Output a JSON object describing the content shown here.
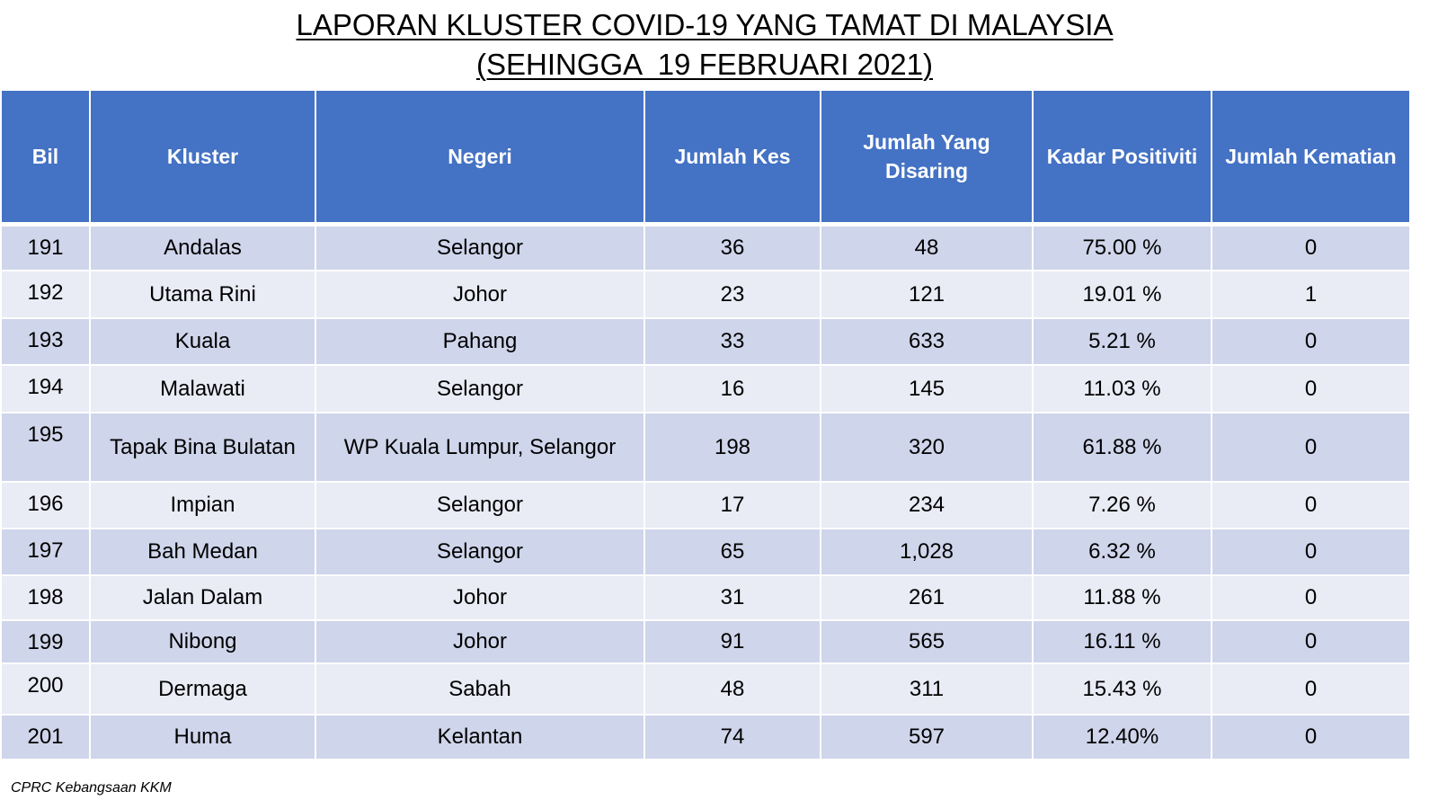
{
  "title": {
    "line1": "LAPORAN KLUSTER COVID-19 YANG TAMAT DI MALAYSIA",
    "line2": "(SEHINGGA  19 FEBRUARI 2021)"
  },
  "table": {
    "headers": {
      "bil": "Bil",
      "kluster": "Kluster",
      "negeri": "Negeri",
      "jumlah_kes": "Jumlah Kes",
      "jumlah_disaring": "Jumlah Yang Disaring",
      "kadar_positiviti": "Kadar Positiviti",
      "jumlah_kematian": "Jumlah Kematian"
    },
    "rows": [
      {
        "bil": "191",
        "kluster": "Andalas",
        "negeri": "Selangor",
        "kes": "36",
        "disaring": "48",
        "positiviti": "75.00 %",
        "kematian": "0"
      },
      {
        "bil": "192",
        "kluster": "Utama Rini",
        "negeri": "Johor",
        "kes": "23",
        "disaring": "121",
        "positiviti": "19.01 %",
        "kematian": "1"
      },
      {
        "bil": "193",
        "kluster": "Kuala",
        "negeri": "Pahang",
        "kes": "33",
        "disaring": "633",
        "positiviti": "5.21 %",
        "kematian": "0"
      },
      {
        "bil": "194",
        "kluster": "Malawati",
        "negeri": "Selangor",
        "kes": "16",
        "disaring": "145",
        "positiviti": "11.03 %",
        "kematian": "0"
      },
      {
        "bil": "195",
        "kluster": "Tapak Bina Bulatan",
        "negeri": "WP Kuala Lumpur, Selangor",
        "kes": "198",
        "disaring": "320",
        "positiviti": "61.88 %",
        "kematian": "0"
      },
      {
        "bil": "196",
        "kluster": "Impian",
        "negeri": "Selangor",
        "kes": "17",
        "disaring": "234",
        "positiviti": "7.26 %",
        "kematian": "0"
      },
      {
        "bil": "197",
        "kluster": "Bah Medan",
        "negeri": "Selangor",
        "kes": "65",
        "disaring": "1,028",
        "positiviti": "6.32 %",
        "kematian": "0"
      },
      {
        "bil": "198",
        "kluster": "Jalan Dalam",
        "negeri": "Johor",
        "kes": "31",
        "disaring": "261",
        "positiviti": "11.88 %",
        "kematian": "0"
      },
      {
        "bil": "199",
        "kluster": "Nibong",
        "negeri": "Johor",
        "kes": "91",
        "disaring": "565",
        "positiviti": "16.11 %",
        "kematian": "0"
      },
      {
        "bil": "200",
        "kluster": "Dermaga",
        "negeri": "Sabah",
        "kes": "48",
        "disaring": "311",
        "positiviti": "15.43 %",
        "kematian": "0"
      },
      {
        "bil": "201",
        "kluster": "Huma",
        "negeri": "Kelantan",
        "kes": "74",
        "disaring": "597",
        "positiviti": "12.40%",
        "kematian": "0"
      }
    ]
  },
  "footer": {
    "source": "CPRC Kebangsaan KKM"
  },
  "colors": {
    "header_bg": "#4472c4",
    "header_text": "#ffffff",
    "row_odd": "#cfd5ea",
    "row_even": "#e9ebf5"
  }
}
